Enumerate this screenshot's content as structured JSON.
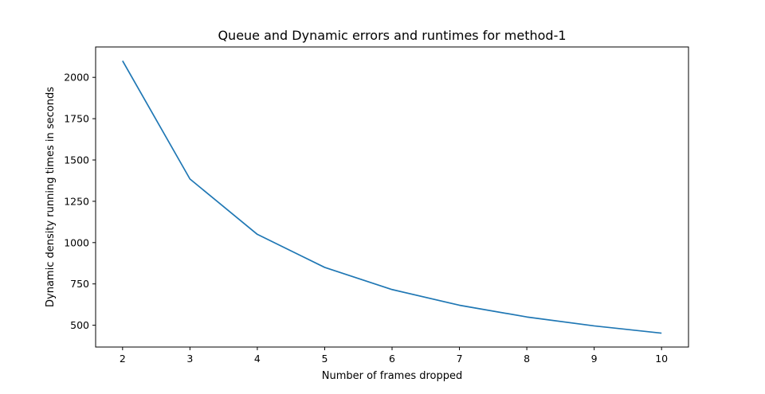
{
  "chart_data": {
    "type": "line",
    "title": "Queue and Dynamic errors and runtimes for method-1",
    "xlabel": "Number of frames dropped",
    "ylabel": "Dynamic density running times in seconds",
    "x": [
      2,
      3,
      4,
      5,
      6,
      7,
      8,
      9,
      10
    ],
    "series": [
      {
        "values": [
          2100,
          1385,
          1050,
          850,
          716,
          621,
          550,
          496,
          452
        ],
        "color": "#1f77b4"
      }
    ],
    "xlim": [
      1.6,
      10.4
    ],
    "ylim": [
      368,
      2184
    ],
    "xticks": [
      2,
      3,
      4,
      5,
      6,
      7,
      8,
      9,
      10
    ],
    "yticks": [
      500,
      750,
      1000,
      1250,
      1500,
      1750,
      2000
    ],
    "grid": false,
    "legend": "none"
  }
}
